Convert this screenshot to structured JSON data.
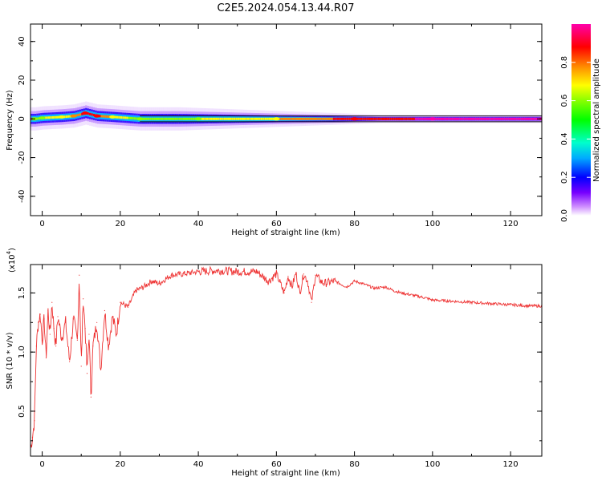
{
  "title": "C2E5.2024.054.13.44.R07",
  "chart_data": [
    {
      "type": "heatmap",
      "xlabel": "Height of straight line (km)",
      "ylabel": "Frequency (Hz)",
      "xlim": [
        -3,
        128
      ],
      "ylim": [
        -50,
        49
      ],
      "xticks": [
        0,
        20,
        40,
        60,
        80,
        100,
        120
      ],
      "yticks": [
        40,
        20,
        0,
        -20,
        -40
      ],
      "colorbar": {
        "label": "Normalized spectral amplitude",
        "range": [
          0,
          1
        ],
        "ticks": [
          0.0,
          0.2,
          0.4,
          0.6,
          0.8
        ],
        "colormap": [
          "#ffffff",
          "#cc88ff",
          "#7700ff",
          "#0000ff",
          "#00aaff",
          "#00ffcc",
          "#00ff00",
          "#88ff00",
          "#ffff00",
          "#ff8800",
          "#ff0000",
          "#ff00aa"
        ]
      },
      "ridge": [
        {
          "x": -2,
          "y": 0,
          "amp": 0.55
        },
        {
          "x": 0,
          "y": 0.5,
          "amp": 0.6
        },
        {
          "x": 5,
          "y": 1,
          "amp": 0.62
        },
        {
          "x": 8,
          "y": 1.5,
          "amp": 0.7
        },
        {
          "x": 11,
          "y": 3,
          "amp": 0.85
        },
        {
          "x": 14,
          "y": 1.5,
          "amp": 0.8
        },
        {
          "x": 18,
          "y": 1,
          "amp": 0.65
        },
        {
          "x": 25,
          "y": 0,
          "amp": 0.55
        },
        {
          "x": 40,
          "y": 0,
          "amp": 0.6
        },
        {
          "x": 60,
          "y": 0,
          "amp": 0.68
        },
        {
          "x": 80,
          "y": 0,
          "amp": 0.82
        },
        {
          "x": 100,
          "y": 0,
          "amp": 0.9
        },
        {
          "x": 128,
          "y": 0,
          "amp": 0.92
        }
      ]
    },
    {
      "type": "line",
      "xlabel": "Height of straight line (km)",
      "ylabel": "SNR (10 * v/v)",
      "yscale_label": "(x10",
      "yscale_exp": "4",
      "xlim": [
        -3,
        128
      ],
      "ylim": [
        0.12,
        1.74
      ],
      "xticks": [
        0,
        20,
        40,
        60,
        80,
        100,
        120
      ],
      "yticks": [
        0.5,
        1.0,
        1.5
      ],
      "ytick_labels": [
        "0.5",
        "1.0",
        "1.5"
      ],
      "series": [
        {
          "color": "#ee3333",
          "x": [
            -3.0,
            -2.5,
            -2.0,
            -1.5,
            -1.0,
            -0.5,
            0.0,
            0.5,
            1.0,
            1.5,
            2.0,
            2.5,
            3.0,
            3.5,
            4.0,
            5.0,
            6.0,
            7.0,
            8.0,
            9.0,
            9.5,
            10.0,
            10.5,
            11.0,
            11.5,
            12.0,
            12.5,
            13.0,
            14.0,
            15.0,
            16.0,
            17.0,
            18.0,
            19.0,
            20.0,
            22.0,
            24.0,
            26.0,
            28.0,
            30.0,
            33.0,
            36.0,
            40.0,
            45.0,
            50.0,
            55.0,
            58.0,
            60.0,
            62.0,
            63.0,
            64.0,
            65.0,
            66.0,
            67.0,
            68.0,
            69.0,
            70.0,
            72.0,
            75.0,
            78.0,
            80.0,
            82.0,
            85.0,
            88.0,
            90.0,
            92.0,
            95.0,
            98.0,
            100.0,
            105.0,
            110.0,
            115.0,
            120.0,
            125.0,
            128.0
          ],
          "y": [
            0.18,
            0.28,
            0.42,
            1.05,
            1.25,
            1.32,
            1.1,
            1.28,
            0.95,
            1.35,
            1.15,
            1.42,
            1.2,
            1.05,
            1.3,
            1.12,
            1.25,
            0.92,
            1.28,
            1.1,
            1.65,
            0.88,
            1.45,
            1.2,
            0.82,
            1.15,
            0.62,
            1.05,
            1.25,
            0.85,
            1.35,
            1.05,
            1.3,
            1.15,
            1.42,
            1.38,
            1.52,
            1.55,
            1.6,
            1.58,
            1.65,
            1.66,
            1.68,
            1.69,
            1.68,
            1.68,
            1.6,
            1.66,
            1.5,
            1.64,
            1.55,
            1.67,
            1.5,
            1.66,
            1.6,
            1.42,
            1.65,
            1.58,
            1.6,
            1.55,
            1.6,
            1.58,
            1.54,
            1.55,
            1.52,
            1.5,
            1.48,
            1.46,
            1.44,
            1.43,
            1.42,
            1.41,
            1.4,
            1.39,
            1.39
          ]
        }
      ]
    }
  ]
}
